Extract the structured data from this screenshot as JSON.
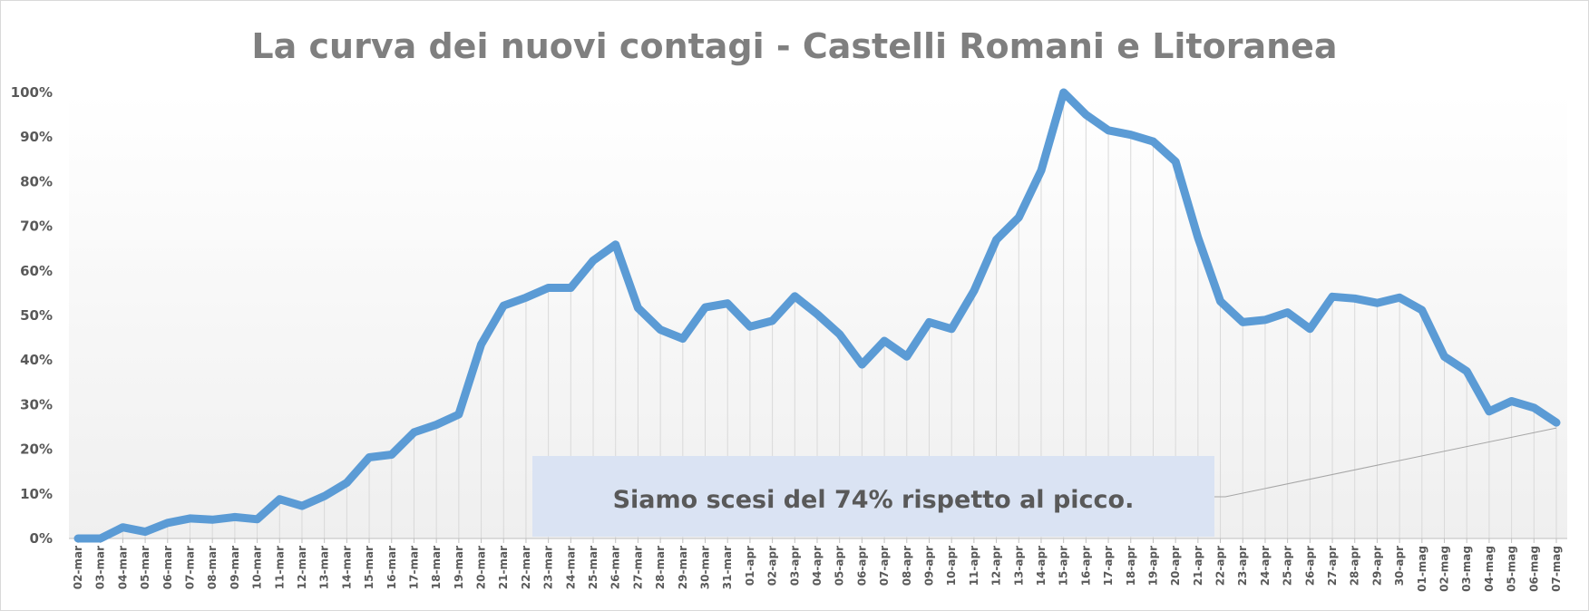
{
  "chart_data": {
    "type": "line",
    "title": "La curva dei nuovi contagi - Castelli Romani e Litoranea",
    "xlabel": "",
    "ylabel": "",
    "ylim": [
      0,
      100
    ],
    "yticks": [
      "0%",
      "10%",
      "20%",
      "30%",
      "40%",
      "50%",
      "60%",
      "70%",
      "80%",
      "90%",
      "100%"
    ],
    "grid": "vertical drop lines",
    "legend": "none",
    "categories": [
      "02-mar",
      "03-mar",
      "04-mar",
      "05-mar",
      "06-mar",
      "07-mar",
      "08-mar",
      "09-mar",
      "10-mar",
      "11-mar",
      "12-mar",
      "13-mar",
      "14-mar",
      "15-mar",
      "16-mar",
      "17-mar",
      "18-mar",
      "19-mar",
      "20-mar",
      "21-mar",
      "22-mar",
      "23-mar",
      "24-mar",
      "25-mar",
      "26-mar",
      "27-mar",
      "28-mar",
      "29-mar",
      "30-mar",
      "31-mar",
      "01-apr",
      "02-apr",
      "03-apr",
      "04-apr",
      "05-apr",
      "06-apr",
      "07-apr",
      "08-apr",
      "09-apr",
      "10-apr",
      "11-apr",
      "12-apr",
      "13-apr",
      "14-apr",
      "15-apr",
      "16-apr",
      "17-apr",
      "18-apr",
      "19-apr",
      "20-apr",
      "21-apr",
      "22-apr",
      "23-apr",
      "24-apr",
      "25-apr",
      "26-apr",
      "27-apr",
      "28-apr",
      "29-apr",
      "30-apr",
      "01-mag",
      "02-mag",
      "03-mag",
      "04-mag",
      "05-mag",
      "06-mag",
      "07-mag"
    ],
    "series": [
      {
        "color": "#5b9bd5",
        "values": [
          0,
          0,
          2.5,
          1.5,
          3.5,
          4.5,
          4.2,
          4.8,
          4.3,
          8.8,
          7.3,
          9.5,
          12.5,
          18.2,
          18.8,
          23.8,
          25.5,
          27.8,
          43.5,
          52.2,
          54,
          56.2,
          56.2,
          62.3,
          65.9,
          51.7,
          46.8,
          44.8,
          51.8,
          52.7,
          47.5,
          48.8,
          54.3,
          50.3,
          45.8,
          39,
          44.3,
          40.8,
          48.5,
          47,
          55.5,
          67,
          72,
          82.5,
          100,
          95,
          91.5,
          90.5,
          89,
          84.5,
          67.5,
          53.2,
          48.5,
          49,
          50.7,
          47,
          54.2,
          53.8,
          52.8,
          54,
          51.2,
          40.8,
          37.5,
          28.5,
          30.8,
          29.3,
          26
        ]
      }
    ],
    "annotation": {
      "text": "Siamo scesi del 74% rispetto al picco.",
      "fill": "#dae3f3",
      "points_to": "07-mag"
    },
    "colors": {
      "line": "#5b9bd5",
      "title": "#7f7f7f",
      "tick_text": "#595959",
      "drop_line": "#d9d9d9",
      "annotation_box": "#dae3f3"
    }
  }
}
